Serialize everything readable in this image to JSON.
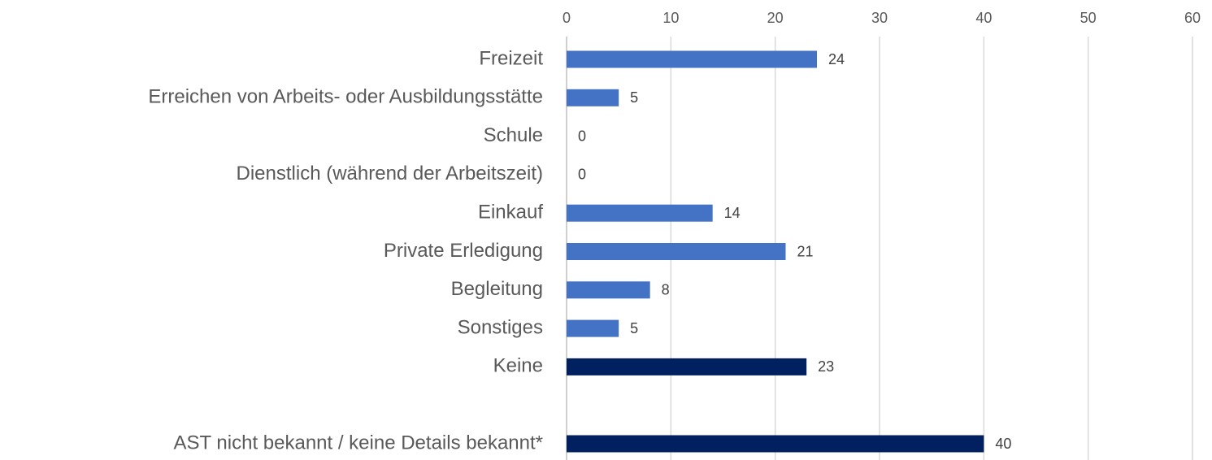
{
  "chart_data": {
    "type": "bar",
    "orientation": "horizontal",
    "categories": [
      "Freizeit",
      "Erreichen von Arbeits- oder Ausbildungsstätte",
      "Schule",
      "Dienstlich (während der Arbeitszeit)",
      "Einkauf",
      "Private Erledigung",
      "Begleitung",
      "Sonstiges",
      "Keine",
      null,
      "AST nicht bekannt / keine Details bekannt*"
    ],
    "values": [
      24,
      5,
      0,
      0,
      14,
      21,
      8,
      5,
      23,
      null,
      40
    ],
    "colors": [
      "#4472c4",
      "#4472c4",
      "#4472c4",
      "#4472c4",
      "#4472c4",
      "#4472c4",
      "#4472c4",
      "#4472c4",
      "#002060",
      null,
      "#002060"
    ],
    "xlim": [
      0,
      60
    ],
    "xticks": [
      0,
      10,
      20,
      30,
      40,
      50,
      60
    ],
    "grid": true
  }
}
